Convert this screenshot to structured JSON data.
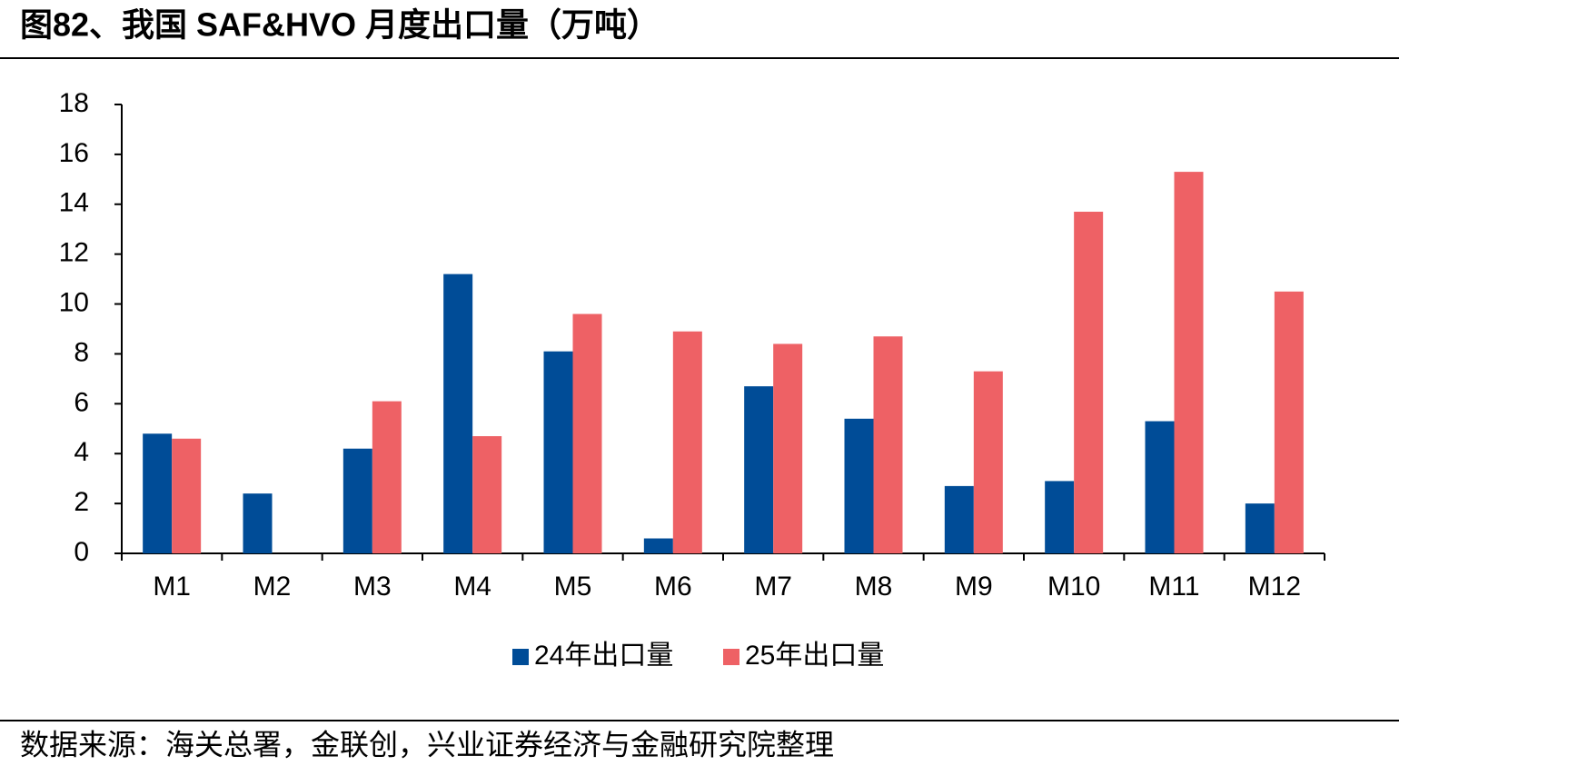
{
  "chart_data": {
    "type": "bar",
    "title": "图82、我国 SAF&HVO 月度出口量（万吨）",
    "source": "数据来源：海关总署，金联创，兴业证券经济与金融研究院整理",
    "categories": [
      "M1",
      "M2",
      "M3",
      "M4",
      "M5",
      "M6",
      "M7",
      "M8",
      "M9",
      "M10",
      "M11",
      "M12"
    ],
    "series": [
      {
        "name": "24年出口量",
        "color": "#004c97",
        "values": [
          4.8,
          2.4,
          4.2,
          11.2,
          8.1,
          0.6,
          6.7,
          5.4,
          2.7,
          2.9,
          5.3,
          2.0
        ]
      },
      {
        "name": "25年出口量",
        "color": "#ee6165",
        "values": [
          4.6,
          null,
          6.1,
          4.7,
          9.6,
          8.9,
          8.4,
          8.7,
          7.3,
          13.7,
          15.3,
          10.5
        ]
      }
    ],
    "ylim": [
      0,
      18
    ],
    "yticks": [
      0,
      2,
      4,
      6,
      8,
      10,
      12,
      14,
      16,
      18
    ],
    "grid": false,
    "legend": "bottom"
  }
}
